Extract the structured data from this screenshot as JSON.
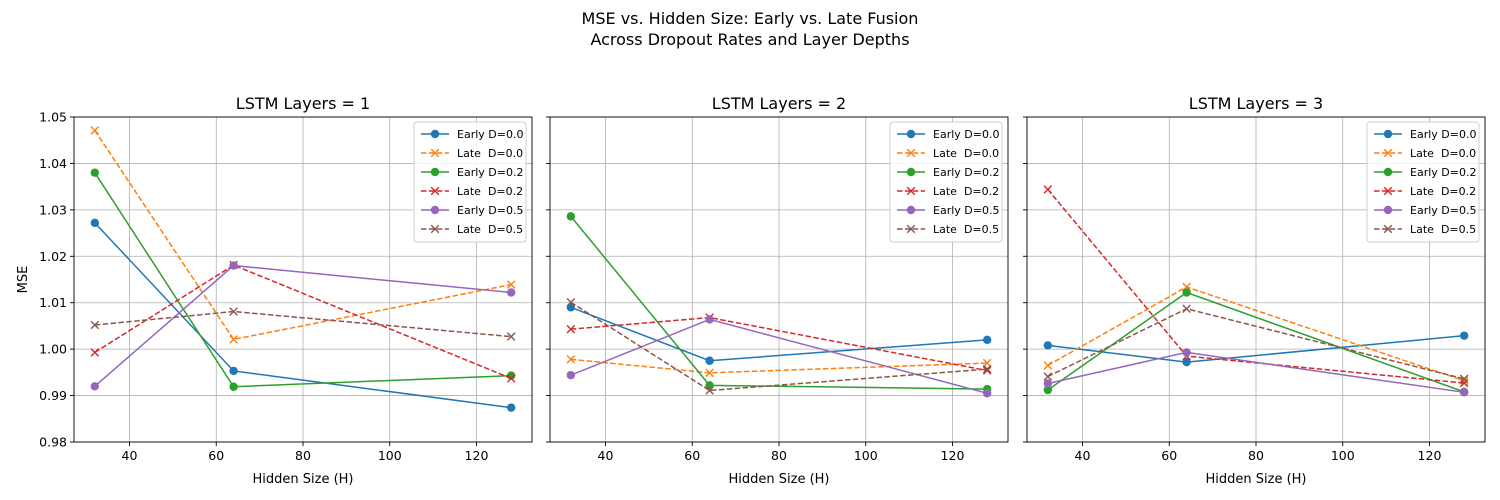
{
  "figure": {
    "title_line1": "MSE vs. Hidden Size: Early vs. Late Fusion",
    "title_line2": "Across Dropout Rates and Layer Depths"
  },
  "chart_data": [
    {
      "type": "line",
      "title": "LSTM Layers = 1",
      "xlabel": "Hidden Size (H)",
      "ylabel": "MSE",
      "x": [
        32,
        64,
        128
      ],
      "xlim": [
        27.2,
        132.8
      ],
      "ylim": [
        0.98,
        1.05
      ],
      "xticks": [
        40,
        60,
        80,
        100,
        120
      ],
      "yticks": [
        0.98,
        0.99,
        1.0,
        1.01,
        1.02,
        1.03,
        1.04,
        1.05
      ],
      "grid": true,
      "legend_position": "top-right",
      "series": [
        {
          "name": "Early D=0.0",
          "values": [
            1.0272,
            0.9953,
            0.9874
          ],
          "color": "#1f77b4",
          "marker": "circle",
          "dash": "solid"
        },
        {
          "name": "Late  D=0.0",
          "values": [
            1.0471,
            1.0021,
            1.0139
          ],
          "color": "#ff7f0e",
          "marker": "x",
          "dash": "dashed"
        },
        {
          "name": "Early D=0.2",
          "values": [
            1.038,
            0.9919,
            0.9943
          ],
          "color": "#2ca02c",
          "marker": "circle",
          "dash": "solid"
        },
        {
          "name": "Late  D=0.2",
          "values": [
            0.9993,
            1.0181,
            0.9937
          ],
          "color": "#d62728",
          "marker": "x",
          "dash": "dashed"
        },
        {
          "name": "Early D=0.5",
          "values": [
            0.992,
            1.018,
            1.0122
          ],
          "color": "#9467bd",
          "marker": "circle",
          "dash": "solid"
        },
        {
          "name": "Late  D=0.5",
          "values": [
            1.0052,
            1.0081,
            1.0027
          ],
          "color": "#8c564b",
          "marker": "x",
          "dash": "dashed"
        }
      ]
    },
    {
      "type": "line",
      "title": "LSTM Layers = 2",
      "xlabel": "Hidden Size (H)",
      "ylabel": "",
      "x": [
        32,
        64,
        128
      ],
      "xlim": [
        27.2,
        132.8
      ],
      "ylim": [
        0.98,
        1.05
      ],
      "xticks": [
        40,
        60,
        80,
        100,
        120
      ],
      "yticks": [
        0.98,
        0.99,
        1.0,
        1.01,
        1.02,
        1.03,
        1.04,
        1.05
      ],
      "grid": true,
      "legend_position": "top-right",
      "series": [
        {
          "name": "Early D=0.0",
          "values": [
            1.009,
            0.9975,
            1.002
          ],
          "color": "#1f77b4",
          "marker": "circle",
          "dash": "solid"
        },
        {
          "name": "Late  D=0.0",
          "values": [
            0.9978,
            0.9949,
            0.997
          ],
          "color": "#ff7f0e",
          "marker": "x",
          "dash": "dashed"
        },
        {
          "name": "Early D=0.2",
          "values": [
            1.0286,
            0.9922,
            0.9914
          ],
          "color": "#2ca02c",
          "marker": "circle",
          "dash": "solid"
        },
        {
          "name": "Late  D=0.2",
          "values": [
            1.0043,
            1.0068,
            0.9954
          ],
          "color": "#d62728",
          "marker": "x",
          "dash": "dashed"
        },
        {
          "name": "Early D=0.5",
          "values": [
            0.9944,
            1.0064,
            0.9905
          ],
          "color": "#9467bd",
          "marker": "circle",
          "dash": "solid"
        },
        {
          "name": "Late  D=0.5",
          "values": [
            1.0101,
            0.9911,
            0.9957
          ],
          "color": "#8c564b",
          "marker": "x",
          "dash": "dashed"
        }
      ]
    },
    {
      "type": "line",
      "title": "LSTM Layers = 3",
      "xlabel": "Hidden Size (H)",
      "ylabel": "",
      "x": [
        32,
        64,
        128
      ],
      "xlim": [
        27.2,
        132.8
      ],
      "ylim": [
        0.98,
        1.05
      ],
      "xticks": [
        40,
        60,
        80,
        100,
        120
      ],
      "yticks": [
        0.98,
        0.99,
        1.0,
        1.01,
        1.02,
        1.03,
        1.04,
        1.05
      ],
      "grid": true,
      "legend_position": "top-right",
      "series": [
        {
          "name": "Early D=0.0",
          "values": [
            1.0008,
            0.9972,
            1.0029
          ],
          "color": "#1f77b4",
          "marker": "circle",
          "dash": "solid"
        },
        {
          "name": "Late  D=0.0",
          "values": [
            0.9965,
            1.0134,
            0.9932
          ],
          "color": "#ff7f0e",
          "marker": "x",
          "dash": "dashed"
        },
        {
          "name": "Early D=0.2",
          "values": [
            0.9912,
            1.0122,
            0.9908
          ],
          "color": "#2ca02c",
          "marker": "circle",
          "dash": "solid"
        },
        {
          "name": "Late  D=0.2",
          "values": [
            1.0344,
            0.9985,
            0.9927
          ],
          "color": "#d62728",
          "marker": "x",
          "dash": "dashed"
        },
        {
          "name": "Early D=0.5",
          "values": [
            0.9926,
            0.9993,
            0.9907
          ],
          "color": "#9467bd",
          "marker": "circle",
          "dash": "solid"
        },
        {
          "name": "Late  D=0.5",
          "values": [
            0.9941,
            1.0087,
            0.9936
          ],
          "color": "#8c564b",
          "marker": "x",
          "dash": "dashed"
        }
      ]
    }
  ]
}
